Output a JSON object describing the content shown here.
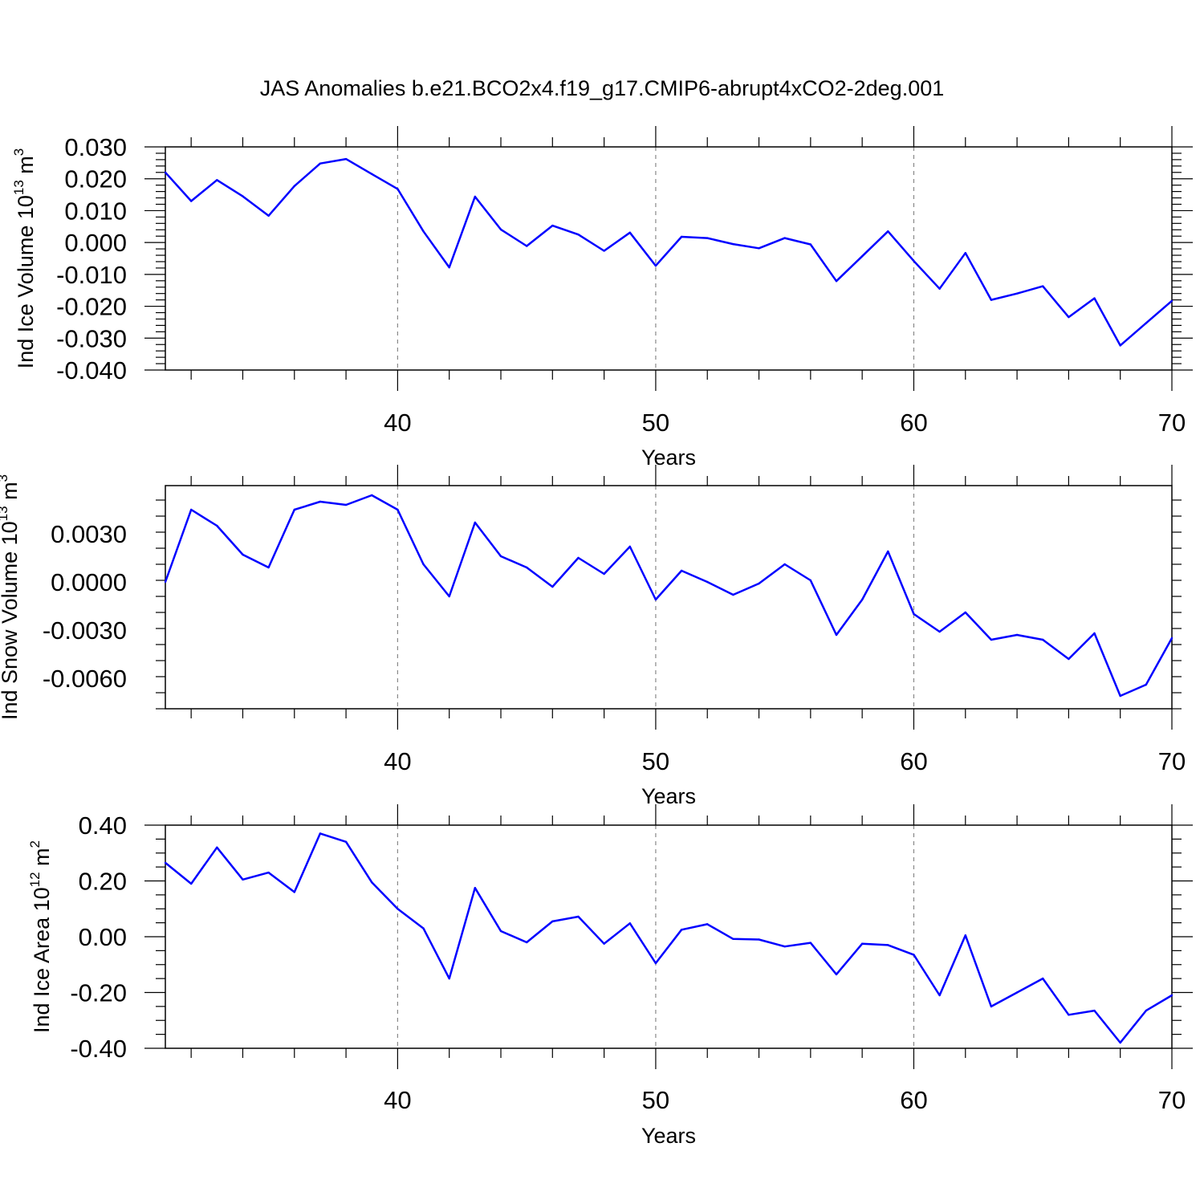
{
  "title": "JAS Anomalies b.e21.BCO2x4.f19_g17.CMIP6-abrupt4xCO2-2deg.001",
  "line_color": "#0000ff",
  "chart_data": [
    {
      "type": "line",
      "ylabel_main": "Ind Ice Volume 10",
      "ylabel_exp": "13",
      "ylabel_unit": " m",
      "ylabel_unit_exp": "3",
      "xlabel": "Years",
      "xlim": [
        31,
        70
      ],
      "ylim": [
        -0.04,
        0.03
      ],
      "yticks": [
        0.03,
        0.02,
        0.01,
        0.0,
        -0.01,
        -0.02,
        -0.03,
        -0.04
      ],
      "ytick_labels": [
        "0.030",
        "0.020",
        "0.010",
        "0.000",
        "-0.010",
        "-0.020",
        "-0.030",
        "-0.040"
      ],
      "xticks": [
        40,
        50,
        60,
        70
      ],
      "xtick_labels": [
        "40",
        "50",
        "60",
        "70"
      ],
      "grid": "vertical dashed at major x ticks",
      "x": [
        31,
        32,
        33,
        34,
        35,
        36,
        37,
        38,
        39,
        40,
        41,
        42,
        43,
        44,
        45,
        46,
        47,
        48,
        49,
        50,
        51,
        52,
        53,
        54,
        55,
        56,
        57,
        58,
        59,
        60,
        61,
        62,
        63,
        64,
        65,
        66,
        67,
        68,
        69,
        70
      ],
      "y": [
        0.022,
        0.013,
        0.0196,
        0.0145,
        0.0084,
        0.0177,
        0.0248,
        0.0262,
        0.0215,
        0.0168,
        0.0035,
        -0.0078,
        0.0144,
        0.0041,
        -0.0011,
        0.0053,
        0.0025,
        -0.0026,
        0.0031,
        -0.0073,
        0.0018,
        0.0014,
        -0.0005,
        -0.0018,
        0.0014,
        -0.0006,
        -0.0121,
        -0.0043,
        0.0035,
        -0.0058,
        -0.0145,
        -0.0033,
        -0.018,
        -0.016,
        -0.0137,
        -0.0234,
        -0.0175,
        -0.0323,
        -0.0253,
        -0.0183
      ]
    },
    {
      "type": "line",
      "ylabel_main": "Ind Snow Volume 10",
      "ylabel_exp": "13",
      "ylabel_unit": " m",
      "ylabel_unit_exp": "3",
      "xlabel": "Years",
      "xlim": [
        31,
        70
      ],
      "ylim": [
        -0.0079,
        0.006
      ],
      "yticks": [
        0.003,
        0.0,
        -0.003,
        -0.006
      ],
      "ytick_labels": [
        "0.0030",
        "0.0000",
        "-0.0030",
        "-0.0060"
      ],
      "xticks": [
        40,
        50,
        60,
        70
      ],
      "xtick_labels": [
        "40",
        "50",
        "60",
        "70"
      ],
      "grid": "vertical dashed at major x ticks",
      "x": [
        31,
        32,
        33,
        34,
        35,
        36,
        37,
        38,
        39,
        40,
        41,
        42,
        43,
        44,
        45,
        46,
        47,
        48,
        49,
        50,
        51,
        52,
        53,
        54,
        55,
        56,
        57,
        58,
        59,
        60,
        61,
        62,
        63,
        64,
        65,
        66,
        67,
        68,
        69,
        70
      ],
      "y": [
        0.0,
        0.0045,
        0.0035,
        0.0017,
        0.0009,
        0.0045,
        0.005,
        0.0048,
        0.0054,
        0.0045,
        0.0011,
        -0.0009,
        0.0037,
        0.0016,
        0.0009,
        -0.0003,
        0.0015,
        0.0005,
        0.0022,
        -0.0011,
        0.0007,
        0.0,
        -0.0008,
        -0.0001,
        0.0011,
        0.0001,
        -0.0033,
        -0.0011,
        0.0019,
        -0.002,
        -0.0031,
        -0.0019,
        -0.0036,
        -0.0033,
        -0.0036,
        -0.0048,
        -0.0032,
        -0.0071,
        -0.0064,
        -0.0035
      ]
    },
    {
      "type": "line",
      "ylabel_main": "Ind Ice Area 10",
      "ylabel_exp": "12",
      "ylabel_unit": " m",
      "ylabel_unit_exp": "2",
      "xlabel": "Years",
      "xlim": [
        31,
        70
      ],
      "ylim": [
        -0.4,
        0.4
      ],
      "yticks": [
        0.4,
        0.2,
        0.0,
        -0.2,
        -0.4
      ],
      "ytick_labels": [
        "0.40",
        "0.20",
        "0.00",
        "-0.20",
        "-0.40"
      ],
      "xticks": [
        40,
        50,
        60,
        70
      ],
      "xtick_labels": [
        "40",
        "50",
        "60",
        "70"
      ],
      "grid": "vertical dashed at major x ticks",
      "x": [
        31,
        32,
        33,
        34,
        35,
        36,
        37,
        38,
        39,
        40,
        41,
        42,
        43,
        44,
        45,
        46,
        47,
        48,
        49,
        50,
        51,
        52,
        53,
        54,
        55,
        56,
        57,
        58,
        59,
        60,
        61,
        62,
        63,
        64,
        65,
        66,
        67,
        68,
        69,
        70
      ],
      "y": [
        0.265,
        0.19,
        0.32,
        0.205,
        0.23,
        0.16,
        0.37,
        0.34,
        0.195,
        0.1,
        0.03,
        -0.15,
        0.175,
        0.02,
        -0.02,
        0.055,
        0.072,
        -0.025,
        0.048,
        -0.095,
        0.025,
        0.045,
        -0.008,
        -0.01,
        -0.035,
        -0.022,
        -0.135,
        -0.025,
        -0.03,
        -0.065,
        -0.21,
        0.005,
        -0.25,
        -0.2,
        -0.15,
        -0.28,
        -0.265,
        -0.38,
        -0.265,
        -0.21
      ]
    }
  ]
}
